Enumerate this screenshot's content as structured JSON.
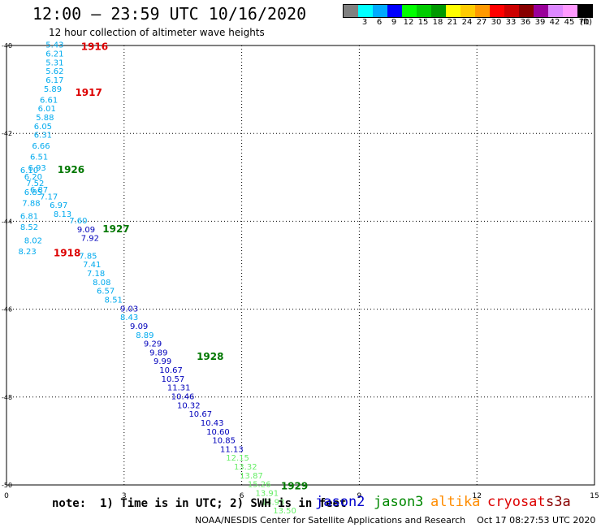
{
  "title": "12:00 – 23:59 UTC 10/16/2020",
  "subtitle": "12 hour collection of altimeter wave heights",
  "note": "note:  1) Time is in UTC; 2) SWH is in feet",
  "footer": "NOAA/NESDIS Center for Satellite Applications and Research    Oct 17 08:27:53 UTC 2020",
  "satellites": [
    {
      "name": "jason2",
      "color": "#0000cc"
    },
    {
      "name": "jason3",
      "color": "#008800"
    },
    {
      "name": "altika",
      "color": "#ff8c00"
    },
    {
      "name": "cryosat",
      "color": "#dd0000"
    },
    {
      "name": "s3a",
      "color": "#880000"
    }
  ],
  "legend": {
    "unit": "(ft)",
    "colors": [
      "#808080",
      "#00ffff",
      "#00aaff",
      "#0000ff",
      "#00ff00",
      "#00cc00",
      "#009900",
      "#ffff00",
      "#ffcc00",
      "#ff9900",
      "#ff0000",
      "#cc0000",
      "#880000",
      "#990099",
      "#dd88ff",
      "#ff99ff",
      "#000000"
    ],
    "labels": [
      "",
      "3",
      "6",
      "9",
      "12",
      "15",
      "18",
      "21",
      "24",
      "27",
      "30",
      "33",
      "36",
      "39",
      "42",
      "45",
      "70"
    ]
  },
  "chart_data": {
    "type": "scatter",
    "title": "12:00 – 23:59 UTC 10/16/2020",
    "subtitle": "12 hour collection of altimeter wave heights",
    "xlim": [
      0,
      15
    ],
    "ylim": [
      -50,
      -40
    ],
    "x_ticks": [
      0,
      3,
      6,
      9,
      12,
      15
    ],
    "y_ticks": [
      -40,
      -42,
      -44,
      -46,
      -48,
      -50
    ],
    "x_tick_labels": [
      "0",
      "3",
      "6",
      "9",
      "12",
      "15"
    ],
    "y_tick_labels": [
      "-40",
      "-42",
      "-44",
      "-46",
      "-48",
      "-50"
    ],
    "grid": true,
    "series": [
      {
        "color": "#00aaee",
        "points": [
          {
            "x": 1.0,
            "y": -40.05,
            "v": "5.43"
          },
          {
            "x": 1.0,
            "y": -40.25,
            "v": "6.21"
          },
          {
            "x": 1.0,
            "y": -40.45,
            "v": "5.31"
          },
          {
            "x": 1.0,
            "y": -40.65,
            "v": "5.62"
          },
          {
            "x": 1.0,
            "y": -40.85,
            "v": "6.17"
          },
          {
            "x": 0.95,
            "y": -41.05,
            "v": "5.89"
          },
          {
            "x": 0.85,
            "y": -41.3,
            "v": "6.61"
          },
          {
            "x": 0.8,
            "y": -41.5,
            "v": "6.01"
          },
          {
            "x": 0.75,
            "y": -41.7,
            "v": "5.88"
          },
          {
            "x": 0.7,
            "y": -41.9,
            "v": "6.05"
          },
          {
            "x": 0.7,
            "y": -42.1,
            "v": "6.31"
          },
          {
            "x": 0.65,
            "y": -42.35,
            "v": "6.66"
          },
          {
            "x": 0.6,
            "y": -42.6,
            "v": "6.51"
          },
          {
            "x": 0.55,
            "y": -42.85,
            "v": "6.93"
          },
          {
            "x": 0.35,
            "y": -42.9,
            "v": "6.10"
          },
          {
            "x": 0.45,
            "y": -43.05,
            "v": "6.20"
          },
          {
            "x": 0.5,
            "y": -43.2,
            "v": "7.52"
          },
          {
            "x": 0.6,
            "y": -43.35,
            "v": "6.87"
          },
          {
            "x": 0.45,
            "y": -43.4,
            "v": "6.85"
          },
          {
            "x": 0.85,
            "y": -43.5,
            "v": "7.17"
          },
          {
            "x": 0.4,
            "y": -43.65,
            "v": "7.88"
          },
          {
            "x": 1.1,
            "y": -43.7,
            "v": "6.97"
          },
          {
            "x": 1.2,
            "y": -43.9,
            "v": "8.13"
          },
          {
            "x": 0.35,
            "y": -43.95,
            "v": "6.81"
          },
          {
            "x": 0.35,
            "y": -44.2,
            "v": "8.52"
          },
          {
            "x": 0.45,
            "y": -44.5,
            "v": "8.02"
          },
          {
            "x": 0.3,
            "y": -44.75,
            "v": "8.23"
          },
          {
            "x": 1.6,
            "y": -44.05,
            "v": "7.60"
          },
          {
            "x": 1.85,
            "y": -44.85,
            "v": "7.85"
          },
          {
            "x": 1.95,
            "y": -45.05,
            "v": "7.41"
          },
          {
            "x": 2.05,
            "y": -45.25,
            "v": "7.18"
          },
          {
            "x": 2.2,
            "y": -45.45,
            "v": "8.08"
          },
          {
            "x": 2.3,
            "y": -45.65,
            "v": "6.57"
          },
          {
            "x": 2.5,
            "y": -45.85,
            "v": "8.51"
          },
          {
            "x": 2.9,
            "y": -46.25,
            "v": "8.43"
          },
          {
            "x": 3.3,
            "y": -46.65,
            "v": "8.89"
          }
        ]
      },
      {
        "color": "#0000bb",
        "points": [
          {
            "x": 1.8,
            "y": -44.25,
            "v": "9.09"
          },
          {
            "x": 1.9,
            "y": -44.45,
            "v": "7.92"
          },
          {
            "x": 2.9,
            "y": -46.05,
            "v": "9.03"
          },
          {
            "x": 3.15,
            "y": -46.45,
            "v": "9.09"
          },
          {
            "x": 3.5,
            "y": -46.85,
            "v": "9.29"
          },
          {
            "x": 3.65,
            "y": -47.05,
            "v": "9.89"
          },
          {
            "x": 3.75,
            "y": -47.25,
            "v": "9.99"
          },
          {
            "x": 3.9,
            "y": -47.45,
            "v": "10.67"
          },
          {
            "x": 3.95,
            "y": -47.65,
            "v": "10.57"
          },
          {
            "x": 4.1,
            "y": -47.85,
            "v": "11.31"
          },
          {
            "x": 4.2,
            "y": -48.05,
            "v": "10.46"
          },
          {
            "x": 4.35,
            "y": -48.25,
            "v": "10.32"
          },
          {
            "x": 4.65,
            "y": -48.45,
            "v": "10.67"
          },
          {
            "x": 4.95,
            "y": -48.65,
            "v": "10.43"
          },
          {
            "x": 5.1,
            "y": -48.85,
            "v": "10.60"
          },
          {
            "x": 5.25,
            "y": -49.05,
            "v": "10.85"
          },
          {
            "x": 5.45,
            "y": -49.25,
            "v": "11.13"
          }
        ]
      },
      {
        "color": "#66ee66",
        "points": [
          {
            "x": 5.6,
            "y": -49.45,
            "v": "12.15"
          },
          {
            "x": 5.8,
            "y": -49.65,
            "v": "13.32"
          },
          {
            "x": 5.95,
            "y": -49.85,
            "v": "13.87"
          },
          {
            "x": 6.15,
            "y": -50.05,
            "v": "15.26"
          },
          {
            "x": 6.35,
            "y": -50.25,
            "v": "13.91"
          },
          {
            "x": 6.5,
            "y": -50.45,
            "v": "13.93"
          },
          {
            "x": 6.8,
            "y": -50.65,
            "v": "13.50"
          }
        ]
      }
    ],
    "annotations": [
      {
        "x": 1.9,
        "y": -40.1,
        "text": "1916",
        "color": "#dd0000"
      },
      {
        "x": 1.75,
        "y": -41.15,
        "text": "1917",
        "color": "#dd0000"
      },
      {
        "x": 1.3,
        "y": -42.9,
        "text": "1926",
        "color": "#007700"
      },
      {
        "x": 2.45,
        "y": -44.25,
        "text": "1927",
        "color": "#007700"
      },
      {
        "x": 1.2,
        "y": -44.8,
        "text": "1918",
        "color": "#dd0000"
      },
      {
        "x": 4.85,
        "y": -47.15,
        "text": "1928",
        "color": "#007700"
      },
      {
        "x": 7.0,
        "y": -50.1,
        "text": "1929",
        "color": "#007700"
      }
    ]
  }
}
